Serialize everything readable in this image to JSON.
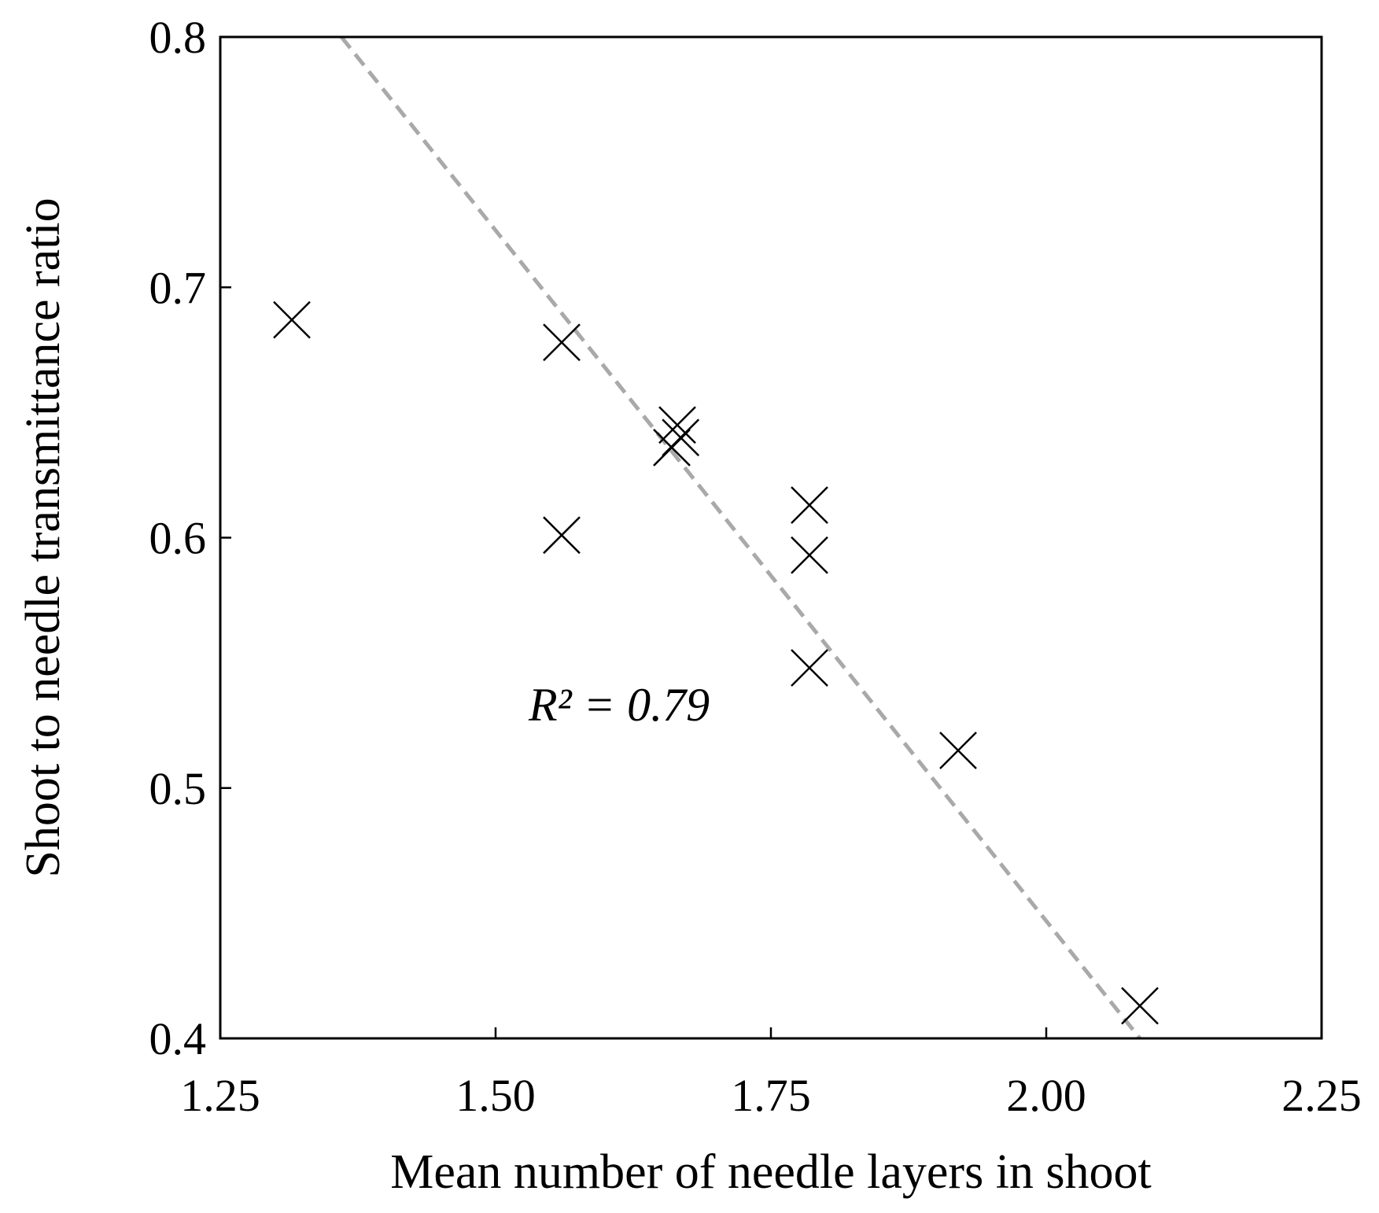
{
  "chart_data": {
    "type": "scatter",
    "title": "",
    "xlabel": "Mean number of needle layers in shoot",
    "ylabel": "Shoot to needle transmittance ratio",
    "xlim": [
      1.25,
      2.25
    ],
    "ylim": [
      0.4,
      0.8
    ],
    "x_ticks": [
      "1.25",
      "1.50",
      "1.75",
      "2.00",
      "2.25"
    ],
    "y_ticks": [
      "0.4",
      "0.5",
      "0.6",
      "0.7",
      "0.8"
    ],
    "grid": false,
    "marker": "x",
    "points": [
      {
        "x": 1.315,
        "y": 0.687
      },
      {
        "x": 1.56,
        "y": 0.678
      },
      {
        "x": 1.56,
        "y": 0.601
      },
      {
        "x": 1.665,
        "y": 0.645
      },
      {
        "x": 1.668,
        "y": 0.64
      },
      {
        "x": 1.66,
        "y": 0.636
      },
      {
        "x": 1.785,
        "y": 0.613
      },
      {
        "x": 1.785,
        "y": 0.593
      },
      {
        "x": 1.785,
        "y": 0.548
      },
      {
        "x": 1.92,
        "y": 0.515
      },
      {
        "x": 2.085,
        "y": 0.413
      }
    ],
    "trendline": {
      "x1": 1.36,
      "y1": 0.8,
      "x2": 2.085,
      "y2": 0.4,
      "color": "#a9a9a9",
      "style": "dashed"
    },
    "annotation": "R² = 0.79",
    "annotation_anchor": {
      "x": 1.53,
      "y": 0.527
    },
    "colors": {
      "marker": "#000000",
      "frame": "#000000",
      "trendline": "#a9a9a9"
    }
  }
}
